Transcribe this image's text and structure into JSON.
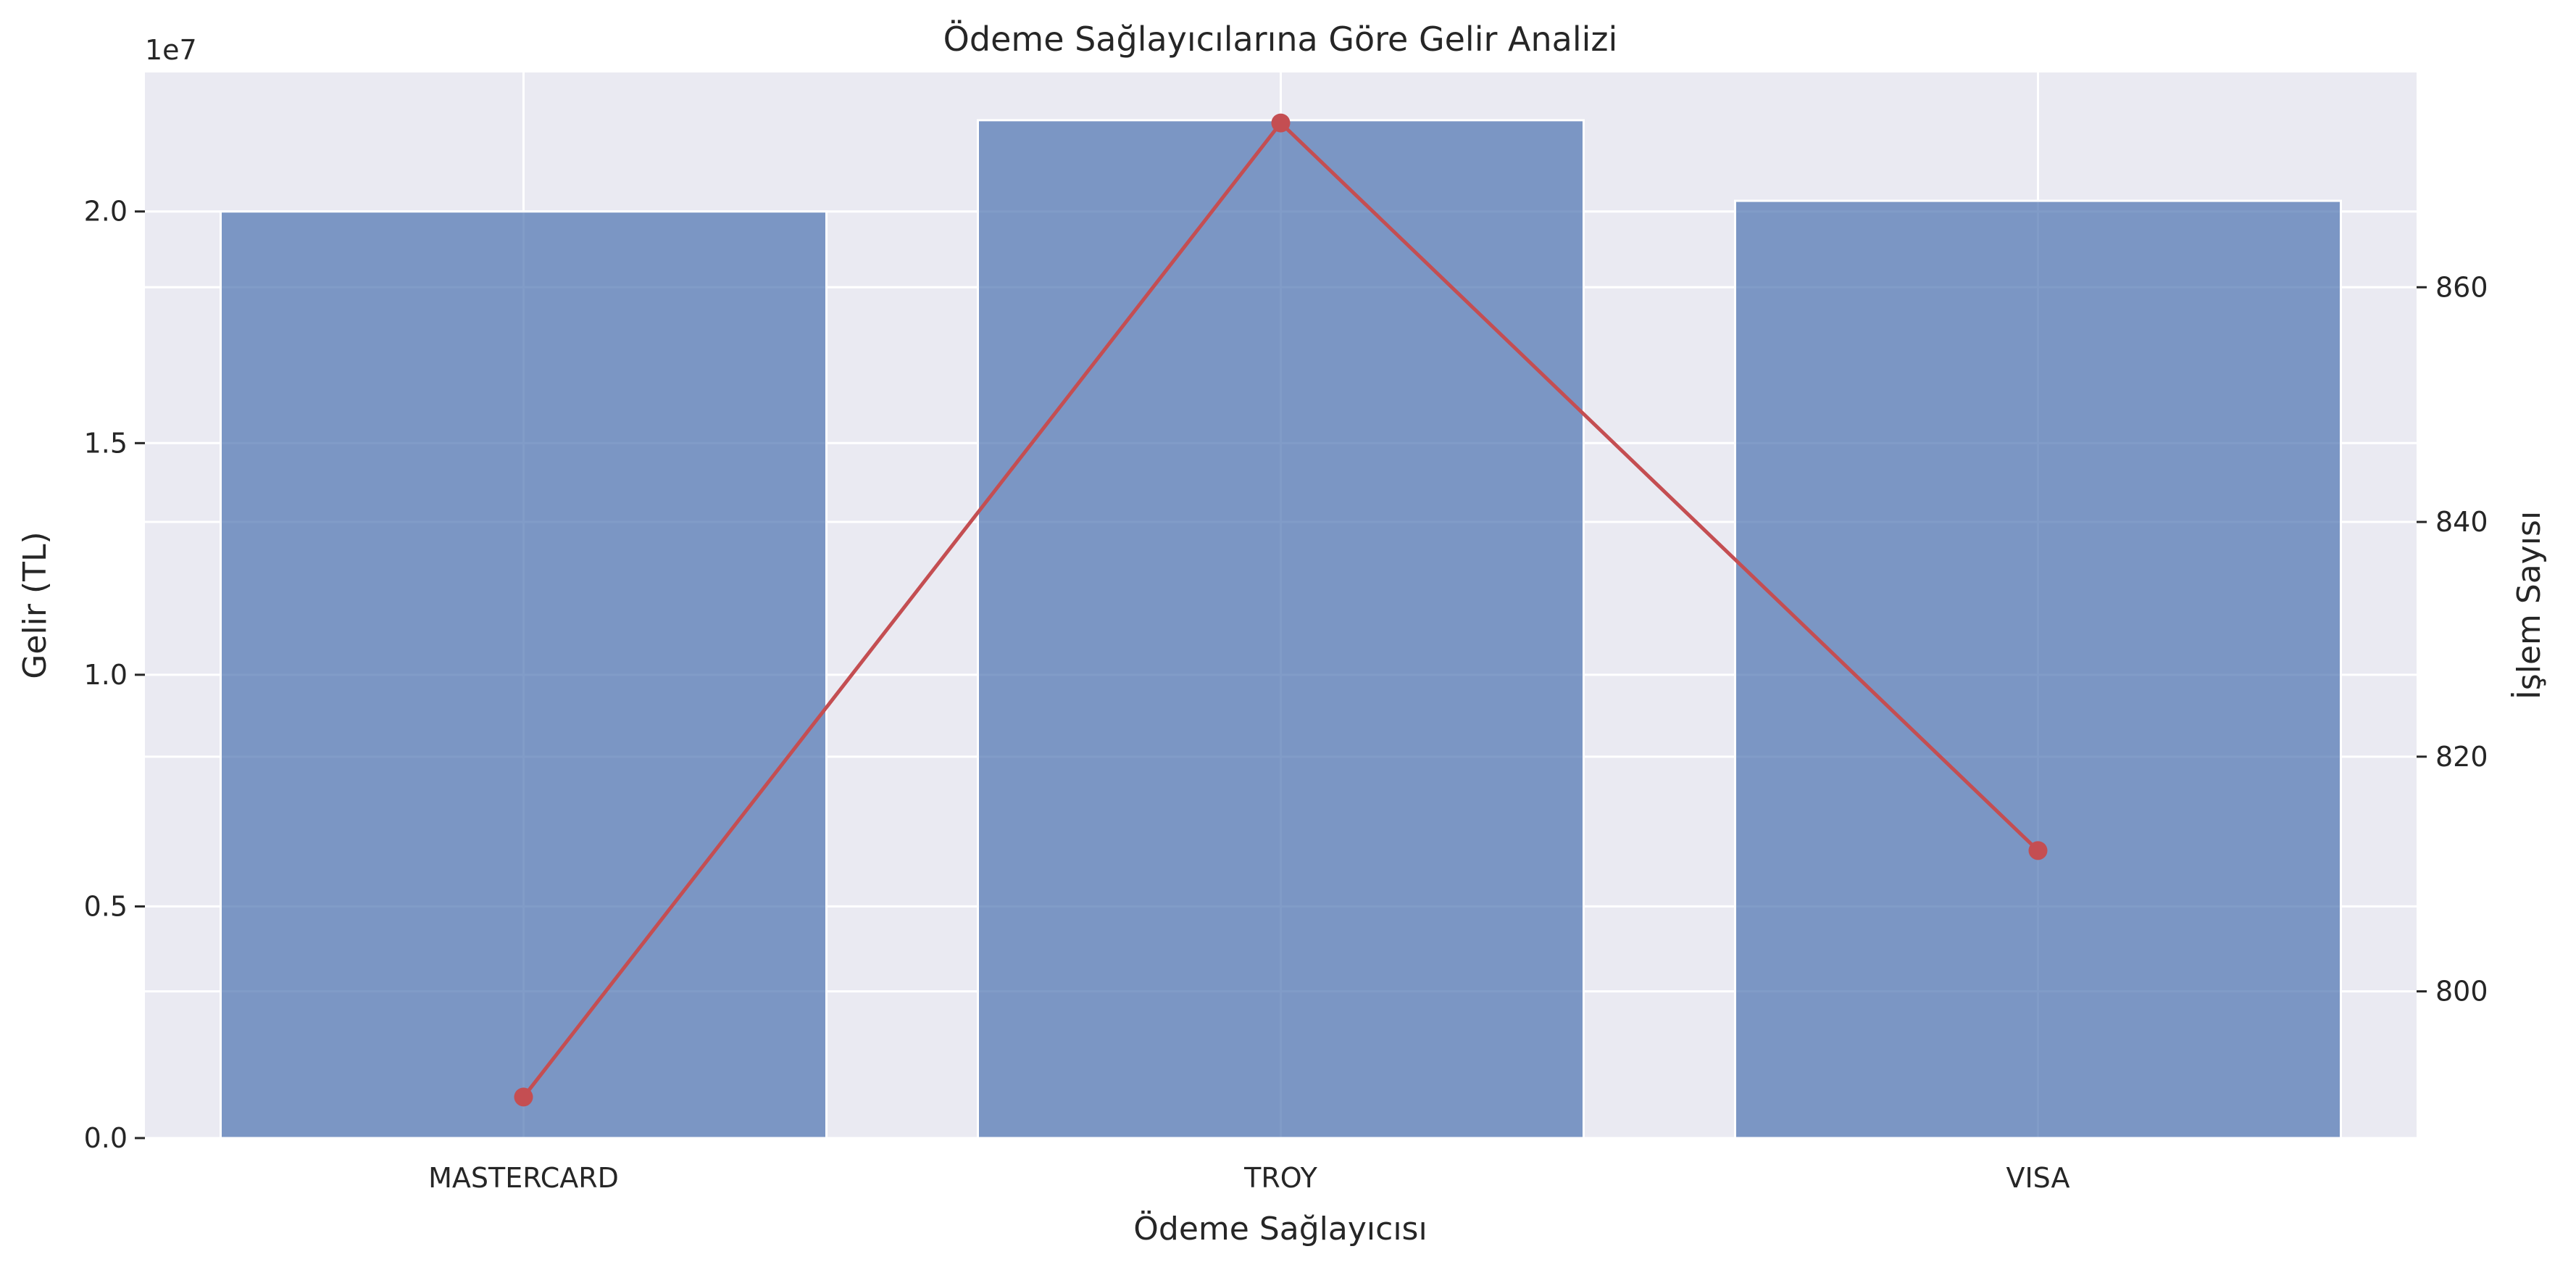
{
  "chart_data": {
    "type": "bar",
    "title": "Ödeme Sağlayıcılarına Göre Gelir Analizi",
    "xlabel": "Ödeme Sağlayıcısı",
    "categories": [
      "MASTERCARD",
      "TROY",
      "VISA"
    ],
    "left_axis": {
      "label": "Gelir (TL)",
      "label_color": "#4c72b0",
      "ylim": [
        0,
        23000000
      ],
      "ticks": [
        0,
        5000000,
        10000000,
        15000000,
        20000000
      ],
      "tick_labels": [
        "0.0",
        "0.5",
        "1.0",
        "1.5",
        "2.0"
      ],
      "offset_text": "1e7"
    },
    "right_axis": {
      "label": "İşlem Sayısı",
      "label_color": "#c44e52",
      "ylim": [
        787.5,
        878.3
      ],
      "ticks": [
        800,
        820,
        840,
        860
      ],
      "tick_labels": [
        "800",
        "820",
        "840",
        "860"
      ]
    },
    "series": [
      {
        "type": "bar",
        "axis": "left",
        "color": "#4c72b0",
        "values": [
          20000000,
          21970000,
          20230000
        ]
      },
      {
        "type": "line",
        "axis": "right",
        "color": "#c44e52",
        "marker": "circle",
        "values": [
          791,
          874,
          812
        ]
      }
    ],
    "grid": true,
    "background": "#eaeaf2"
  }
}
